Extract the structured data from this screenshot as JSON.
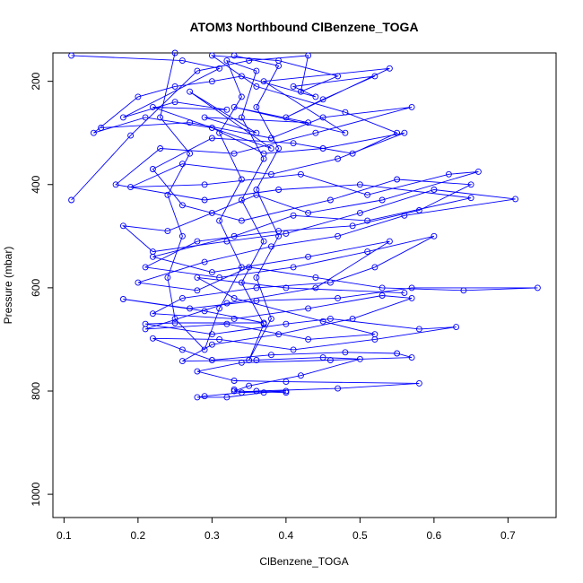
{
  "chart_data": {
    "type": "line",
    "title": "ATOM3 Northbound ClBenzene_TOGA",
    "xlabel": "ClBenzene_TOGA",
    "ylabel": "Pressure (mbar)",
    "xlim": [
      0.085,
      0.765
    ],
    "ylim": [
      1045,
      145
    ],
    "y_reversed": true,
    "x_ticks": [
      0.1,
      0.2,
      0.3,
      0.4,
      0.5,
      0.6,
      0.7
    ],
    "y_ticks": [
      200,
      400,
      600,
      800,
      1000
    ],
    "series_color": "#0000ff",
    "series": [
      {
        "points": [
          [
            0.11,
            150
          ],
          [
            0.26,
            160
          ],
          [
            0.31,
            175
          ],
          [
            0.18,
            270
          ],
          [
            0.25,
            240
          ],
          [
            0.32,
            255
          ],
          [
            0.22,
            250
          ],
          [
            0.38,
            330
          ],
          [
            0.27,
            220
          ],
          [
            0.36,
            300
          ],
          [
            0.29,
            270
          ],
          [
            0.43,
            280
          ],
          [
            0.33,
            250
          ],
          [
            0.48,
            300
          ],
          [
            0.37,
            200
          ],
          [
            0.54,
            175
          ],
          [
            0.4,
            270
          ],
          [
            0.45,
            235
          ],
          [
            0.52,
            190
          ],
          [
            0.41,
            210
          ],
          [
            0.44,
            230
          ],
          [
            0.34,
            190
          ],
          [
            0.3,
            200
          ],
          [
            0.25,
            210
          ],
          [
            0.2,
            230
          ],
          [
            0.14,
            300
          ],
          [
            0.21,
            270
          ],
          [
            0.3,
            290
          ],
          [
            0.37,
            340
          ],
          [
            0.45,
            330
          ],
          [
            0.56,
            300
          ],
          [
            0.47,
            350
          ],
          [
            0.38,
            380
          ],
          [
            0.26,
            360
          ],
          [
            0.19,
            405
          ],
          [
            0.29,
            400
          ],
          [
            0.42,
            380
          ],
          [
            0.51,
            420
          ],
          [
            0.62,
            380
          ],
          [
            0.66,
            375
          ],
          [
            0.53,
            430
          ],
          [
            0.43,
            455
          ],
          [
            0.36,
            420
          ],
          [
            0.3,
            455
          ],
          [
            0.24,
            490
          ],
          [
            0.18,
            480
          ],
          [
            0.22,
            530
          ],
          [
            0.32,
            510
          ],
          [
            0.4,
            495
          ],
          [
            0.5,
            455
          ],
          [
            0.6,
            410
          ],
          [
            0.71,
            428
          ],
          [
            0.56,
            460
          ],
          [
            0.47,
            500
          ],
          [
            0.38,
            520
          ],
          [
            0.29,
            550
          ],
          [
            0.2,
            590
          ],
          [
            0.28,
            605
          ],
          [
            0.35,
            560
          ],
          [
            0.44,
            580
          ],
          [
            0.53,
            600
          ],
          [
            0.64,
            605
          ],
          [
            0.74,
            600
          ],
          [
            0.57,
            600
          ],
          [
            0.47,
            620
          ],
          [
            0.36,
            625
          ],
          [
            0.27,
            640
          ],
          [
            0.18,
            622
          ],
          [
            0.29,
            645
          ],
          [
            0.37,
            668
          ],
          [
            0.25,
            668
          ],
          [
            0.21,
            670
          ],
          [
            0.3,
            690
          ],
          [
            0.4,
            670
          ],
          [
            0.46,
            660
          ],
          [
            0.58,
            680
          ],
          [
            0.63,
            676
          ],
          [
            0.52,
            700
          ],
          [
            0.41,
            720
          ],
          [
            0.31,
            700
          ],
          [
            0.22,
            698
          ],
          [
            0.26,
            720
          ],
          [
            0.3,
            740
          ],
          [
            0.38,
            730
          ],
          [
            0.48,
            725
          ],
          [
            0.55,
            727
          ],
          [
            0.57,
            735
          ],
          [
            0.46,
            740
          ],
          [
            0.34,
            745
          ],
          [
            0.28,
            762
          ],
          [
            0.33,
            780
          ],
          [
            0.4,
            782
          ],
          [
            0.58,
            785
          ],
          [
            0.47,
            795
          ],
          [
            0.36,
            800
          ],
          [
            0.29,
            810
          ],
          [
            0.28,
            812
          ],
          [
            0.32,
            812
          ],
          [
            0.37,
            803
          ],
          [
            0.4,
            800
          ],
          [
            0.34,
            803
          ],
          [
            0.33,
            797
          ]
        ]
      },
      {
        "points": [
          [
            0.11,
            430
          ],
          [
            0.19,
            305
          ],
          [
            0.28,
            180
          ],
          [
            0.35,
            160
          ],
          [
            0.43,
            150
          ],
          [
            0.42,
            220
          ],
          [
            0.47,
            190
          ],
          [
            0.39,
            160
          ],
          [
            0.3,
            150
          ],
          [
            0.36,
            210
          ],
          [
            0.48,
            260
          ],
          [
            0.55,
            300
          ],
          [
            0.49,
            340
          ],
          [
            0.41,
            320
          ],
          [
            0.3,
            310
          ],
          [
            0.22,
            370
          ],
          [
            0.26,
            440
          ],
          [
            0.34,
            470
          ],
          [
            0.46,
            430
          ],
          [
            0.55,
            390
          ],
          [
            0.65,
            400
          ],
          [
            0.58,
            450
          ],
          [
            0.49,
            480
          ],
          [
            0.39,
            490
          ],
          [
            0.28,
            510
          ],
          [
            0.21,
            560
          ],
          [
            0.31,
            580
          ],
          [
            0.41,
            560
          ],
          [
            0.51,
            530
          ],
          [
            0.6,
            500
          ],
          [
            0.52,
            560
          ],
          [
            0.46,
            590
          ],
          [
            0.36,
            600
          ],
          [
            0.26,
            620
          ],
          [
            0.22,
            650
          ],
          [
            0.33,
            660
          ],
          [
            0.43,
            640
          ],
          [
            0.53,
            615
          ],
          [
            0.57,
            620
          ],
          [
            0.49,
            660
          ],
          [
            0.39,
            690
          ],
          [
            0.3,
            710
          ],
          [
            0.26,
            742
          ],
          [
            0.36,
            740
          ],
          [
            0.45,
            735
          ],
          [
            0.5,
            738
          ],
          [
            0.42,
            770
          ],
          [
            0.35,
            790
          ],
          [
            0.33,
            800
          ],
          [
            0.4,
            803
          ]
        ]
      },
      {
        "points": [
          [
            0.25,
            145
          ],
          [
            0.23,
            270
          ],
          [
            0.27,
            340
          ],
          [
            0.24,
            420
          ],
          [
            0.26,
            500
          ],
          [
            0.24,
            580
          ],
          [
            0.25,
            660
          ],
          [
            0.29,
            720
          ],
          [
            0.31,
            640
          ],
          [
            0.34,
            560
          ],
          [
            0.31,
            470
          ],
          [
            0.34,
            390
          ],
          [
            0.31,
            300
          ],
          [
            0.34,
            230
          ],
          [
            0.32,
            160
          ],
          [
            0.36,
            180
          ],
          [
            0.34,
            270
          ],
          [
            0.37,
            350
          ],
          [
            0.34,
            430
          ],
          [
            0.37,
            510
          ],
          [
            0.34,
            590
          ],
          [
            0.37,
            670
          ],
          [
            0.35,
            740
          ],
          [
            0.38,
            660
          ],
          [
            0.36,
            580
          ],
          [
            0.39,
            500
          ],
          [
            0.36,
            410
          ],
          [
            0.39,
            330
          ],
          [
            0.36,
            250
          ],
          [
            0.39,
            170
          ],
          [
            0.33,
            150
          ]
        ]
      },
      {
        "points": [
          [
            0.15,
            290
          ],
          [
            0.27,
            280
          ],
          [
            0.38,
            310
          ],
          [
            0.45,
            270
          ],
          [
            0.57,
            250
          ],
          [
            0.44,
            300
          ],
          [
            0.33,
            340
          ],
          [
            0.23,
            330
          ],
          [
            0.17,
            400
          ],
          [
            0.29,
            430
          ],
          [
            0.39,
            410
          ],
          [
            0.5,
            400
          ],
          [
            0.65,
            426
          ],
          [
            0.51,
            470
          ],
          [
            0.41,
            460
          ],
          [
            0.33,
            500
          ],
          [
            0.22,
            540
          ],
          [
            0.3,
            570
          ],
          [
            0.43,
            540
          ],
          [
            0.54,
            510
          ],
          [
            0.44,
            600
          ],
          [
            0.32,
            630
          ],
          [
            0.21,
            680
          ],
          [
            0.32,
            670
          ],
          [
            0.43,
            700
          ],
          [
            0.52,
            690
          ],
          [
            0.45,
            665
          ],
          [
            0.33,
            620
          ],
          [
            0.28,
            580
          ],
          [
            0.4,
            600
          ],
          [
            0.56,
            610
          ]
        ]
      }
    ]
  }
}
